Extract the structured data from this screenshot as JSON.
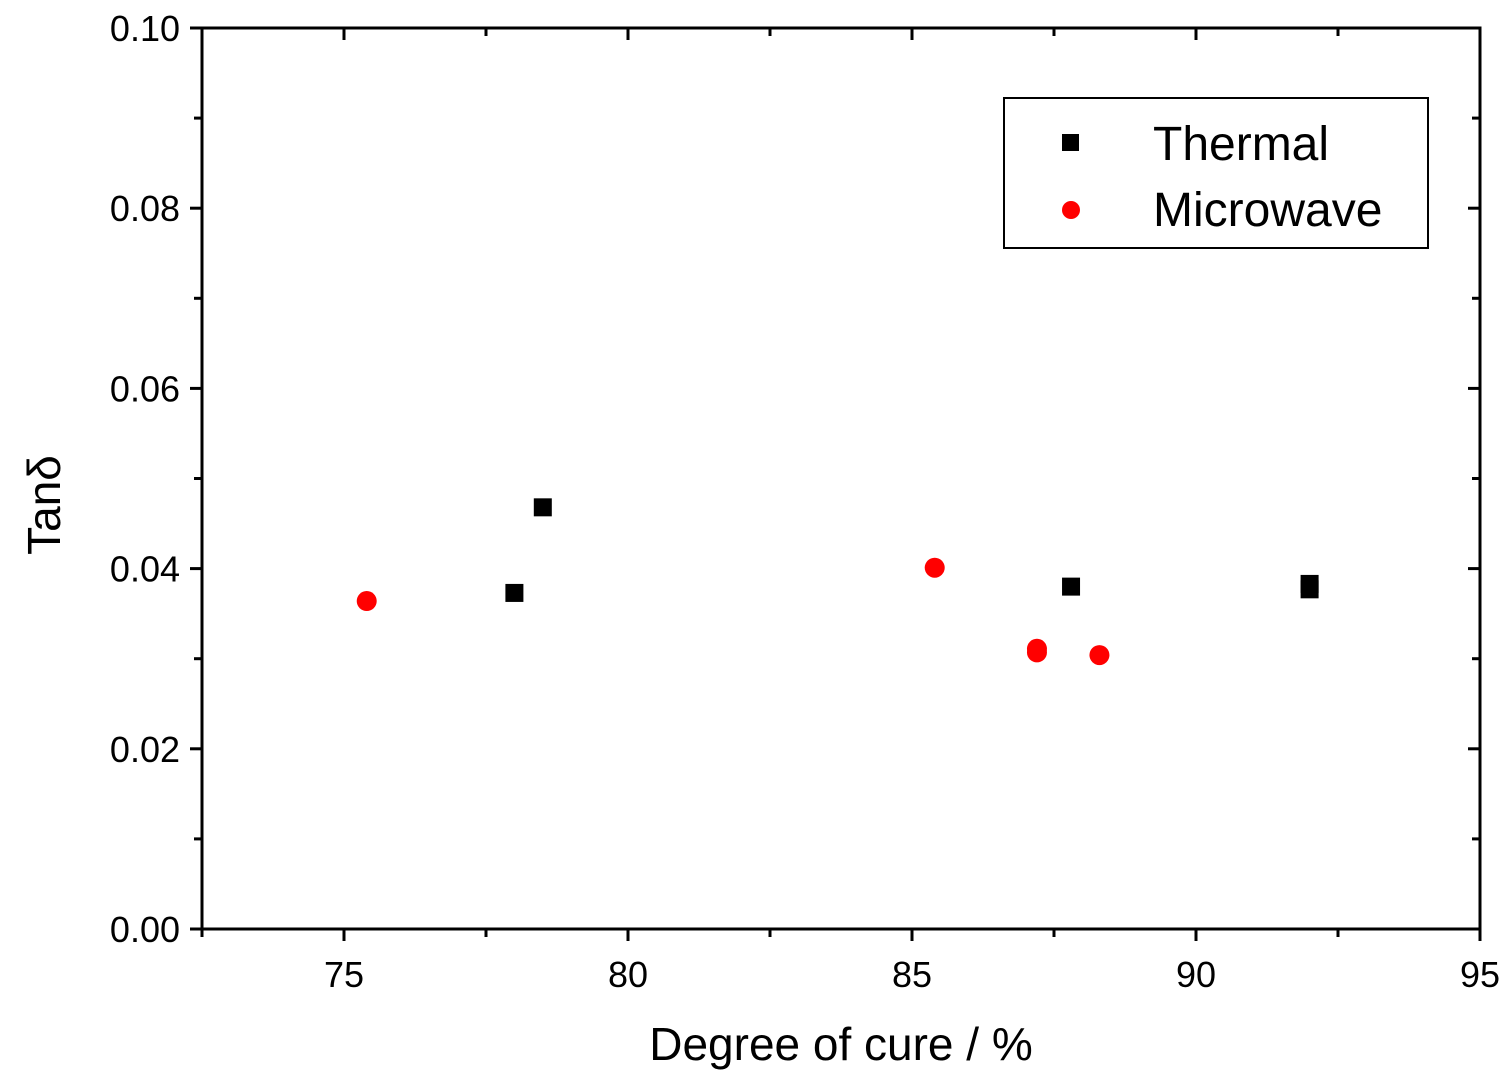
{
  "chart_data": {
    "type": "scatter",
    "title": "",
    "xlabel": "Degree of cure / %",
    "ylabel": "Tanδ",
    "xlim": [
      72.5,
      95
    ],
    "ylim": [
      0,
      0.1
    ],
    "x_ticks": [
      75,
      80,
      85,
      90,
      95
    ],
    "x_tick_labels": [
      "75",
      "80",
      "85",
      "90",
      "95"
    ],
    "y_ticks": [
      0,
      0.02,
      0.04,
      0.06,
      0.08,
      0.1
    ],
    "y_tick_labels": [
      "0.00",
      "0.02",
      "0.04",
      "0.06",
      "0.08",
      "0.10"
    ],
    "grid": false,
    "legend_position": "top-right",
    "series": [
      {
        "name": "Thermal",
        "marker": "square",
        "color": "#000000",
        "points": [
          {
            "x": 78.0,
            "y": 0.0373
          },
          {
            "x": 78.5,
            "y": 0.0468
          },
          {
            "x": 87.8,
            "y": 0.038
          },
          {
            "x": 92.0,
            "y": 0.0383
          },
          {
            "x": 92.0,
            "y": 0.0377
          }
        ]
      },
      {
        "name": "Microwave",
        "marker": "circle",
        "color": "#ff0000",
        "points": [
          {
            "x": 75.4,
            "y": 0.0364
          },
          {
            "x": 85.4,
            "y": 0.0401
          },
          {
            "x": 87.2,
            "y": 0.0311
          },
          {
            "x": 87.2,
            "y": 0.0307
          },
          {
            "x": 88.3,
            "y": 0.0304
          }
        ]
      }
    ]
  }
}
